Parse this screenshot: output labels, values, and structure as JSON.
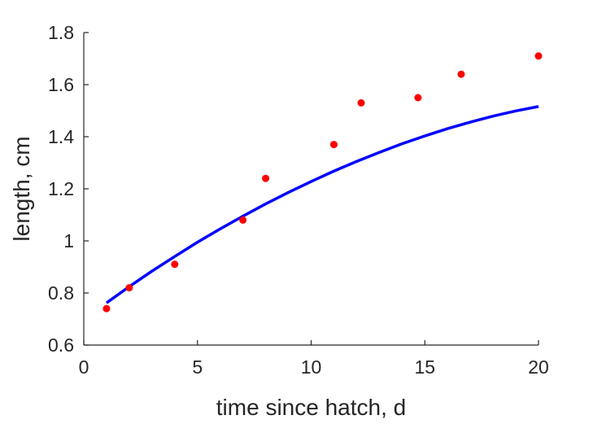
{
  "chart_data": {
    "type": "scatter",
    "title": "",
    "xlabel": "time since hatch, d",
    "ylabel": "length, cm",
    "xlim": [
      0,
      20
    ],
    "ylim": [
      0.6,
      1.8
    ],
    "xticks": [
      0,
      5,
      10,
      15,
      20
    ],
    "xtick_labels": [
      "0",
      "5",
      "10",
      "15",
      "20"
    ],
    "yticks": [
      0.6,
      0.8,
      1.0,
      1.2,
      1.4,
      1.6,
      1.8
    ],
    "ytick_labels": [
      "0.6",
      "0.8",
      "1",
      "1.2",
      "1.4",
      "1.6",
      "1.8"
    ],
    "grid": false,
    "series": [
      {
        "kind": "scatter",
        "color": "#ff0000",
        "x": [
          1,
          2,
          4,
          7,
          8,
          11,
          12.2,
          14.7,
          16.6,
          20
        ],
        "y": [
          0.74,
          0.82,
          0.91,
          1.08,
          1.24,
          1.37,
          1.53,
          1.55,
          1.64,
          1.71
        ]
      },
      {
        "kind": "line",
        "color": "#0000ff",
        "x": [
          1,
          2,
          3,
          4,
          5,
          6,
          7,
          8,
          9,
          10,
          11,
          12,
          13,
          14,
          15,
          16,
          17,
          18,
          19,
          20
        ],
        "y": [
          0.762,
          0.8245,
          0.884,
          0.94,
          0.995,
          1.046,
          1.095,
          1.142,
          1.186,
          1.228,
          1.268,
          1.305,
          1.34,
          1.373,
          1.403,
          1.431,
          1.456,
          1.479,
          1.499,
          1.516
        ]
      }
    ]
  }
}
